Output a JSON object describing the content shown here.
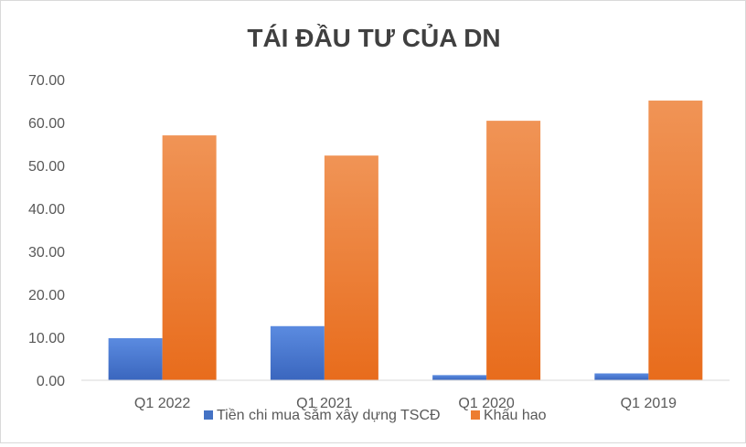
{
  "chart_data": {
    "type": "bar",
    "title": "TÁI ĐẦU TƯ CỦA DN",
    "categories": [
      "Q1 2022",
      "Q1 2021",
      "Q1 2020",
      "Q1 2019"
    ],
    "series": [
      {
        "name": "Tiền chi mua sắm xây dựng TSCĐ",
        "values": [
          9.8,
          12.6,
          1.2,
          1.6
        ],
        "color": "#4472c4"
      },
      {
        "name": "Khấu hao",
        "values": [
          57.0,
          52.3,
          60.4,
          65.1
        ],
        "color": "#ed7d31"
      }
    ],
    "ylim": [
      0,
      70
    ],
    "yticks": [
      "0.00",
      "10.00",
      "20.00",
      "30.00",
      "40.00",
      "50.00",
      "60.00",
      "70.00"
    ],
    "grid": false,
    "legend": "bottom",
    "xlabel": "",
    "ylabel": ""
  }
}
